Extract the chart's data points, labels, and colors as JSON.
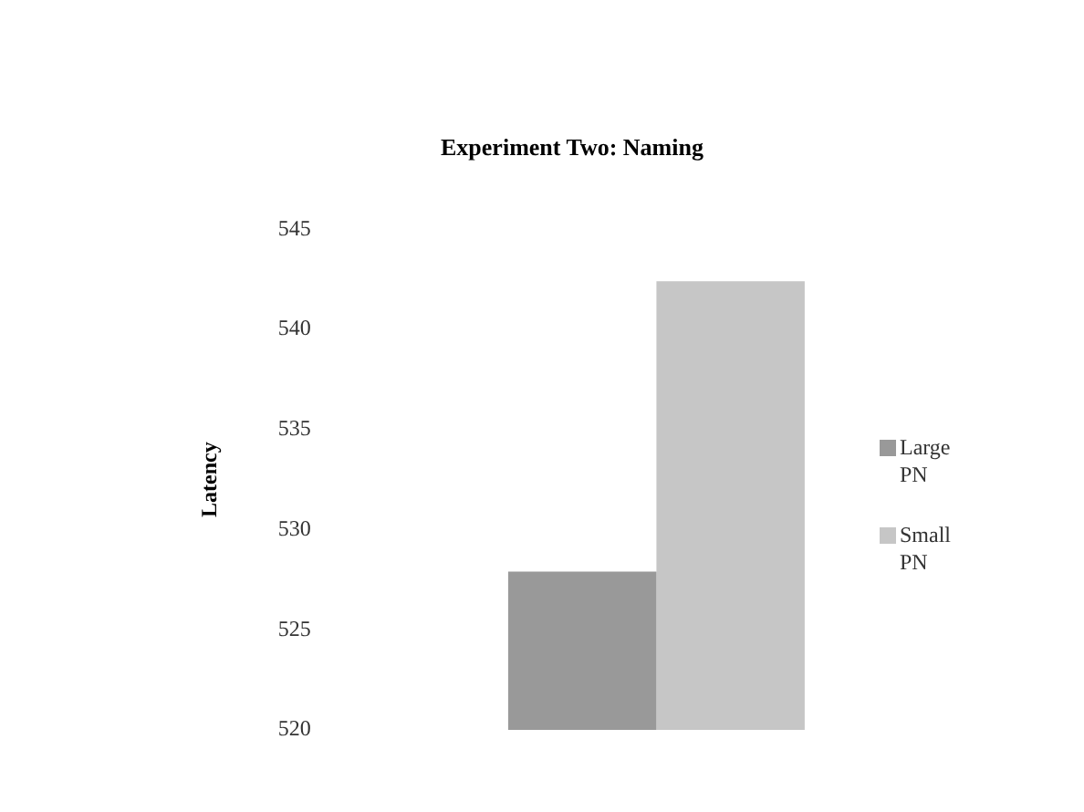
{
  "chart_data": {
    "type": "bar",
    "title": "Experiment Two: Naming",
    "ylabel": "Latency",
    "categories": [
      null
    ],
    "series": [
      {
        "name": "Large PN",
        "color": "#999999",
        "values": [
          527.9
        ]
      },
      {
        "name": "Small PN",
        "color": "#c6c6c6",
        "values": [
          542.4
        ]
      }
    ],
    "ylim": [
      520,
      545
    ],
    "yticks": [
      520,
      525,
      530,
      535,
      540,
      545
    ],
    "grid": false,
    "legend": "right"
  }
}
